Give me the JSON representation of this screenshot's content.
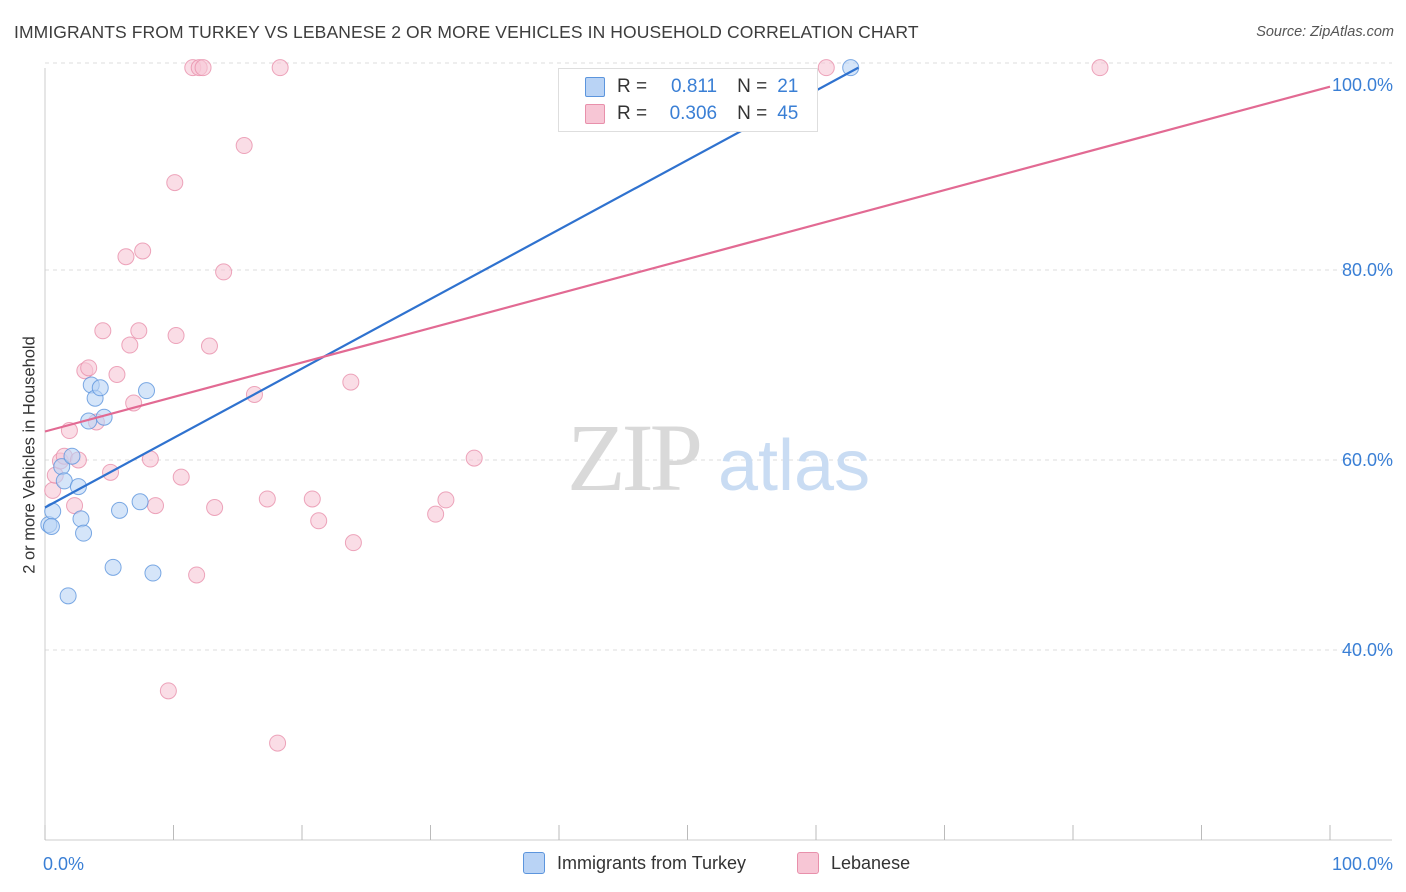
{
  "title": "IMMIGRANTS FROM TURKEY VS LEBANESE 2 OR MORE VEHICLES IN HOUSEHOLD CORRELATION CHART",
  "source": "Source: ZipAtlas.com",
  "watermark": {
    "zip": "ZIP",
    "atlas": "atlas"
  },
  "colors": {
    "blue_fill": "#b9d3f5",
    "blue_stroke": "#5c95dd",
    "blue_line": "#2f72cf",
    "pink_fill": "#f7c6d5",
    "pink_stroke": "#e890ab",
    "pink_line": "#e26a93",
    "axis_text": "#3a7fd5",
    "grid": "#dddddd"
  },
  "legend": {
    "r_label": "R =",
    "n_label": "N =",
    "turkey": {
      "r": "0.811",
      "n": "21"
    },
    "lebanese": {
      "r": "0.306",
      "n": "45"
    }
  },
  "bottom_legend": {
    "turkey": "Immigrants from Turkey",
    "lebanese": "Lebanese"
  },
  "chart_data": {
    "type": "scatter",
    "title": "IMMIGRANTS FROM TURKEY VS LEBANESE 2 OR MORE VEHICLES IN HOUSEHOLD CORRELATION CHART",
    "xlabel": "",
    "ylabel": "2 or more Vehicles in Household",
    "xlim": [
      0,
      100
    ],
    "ylim": [
      20,
      102
    ],
    "x_tick_labels": [
      {
        "value": 0,
        "label": "0.0%"
      },
      {
        "value": 100,
        "label": "100.0%"
      }
    ],
    "y_tick_labels": [
      {
        "value": 100,
        "label": "100.0%"
      },
      {
        "value": 80,
        "label": "80.0%"
      },
      {
        "value": 60,
        "label": "60.0%"
      },
      {
        "value": 40,
        "label": "40.0%"
      }
    ],
    "series": [
      {
        "name": "Immigrants from Turkey",
        "color": "#b9d3f5",
        "R": 0.811,
        "N": 21,
        "trend": {
          "x": [
            0,
            63.3
          ],
          "y": [
            55,
            101.3
          ]
        },
        "points": [
          {
            "x": 0.3,
            "y": 53.2
          },
          {
            "x": 0.6,
            "y": 54.6
          },
          {
            "x": 0.5,
            "y": 53.0
          },
          {
            "x": 1.3,
            "y": 59.3
          },
          {
            "x": 1.5,
            "y": 57.8
          },
          {
            "x": 1.8,
            "y": 45.7
          },
          {
            "x": 2.1,
            "y": 60.4
          },
          {
            "x": 2.6,
            "y": 57.2
          },
          {
            "x": 2.8,
            "y": 53.8
          },
          {
            "x": 3.0,
            "y": 52.3
          },
          {
            "x": 3.4,
            "y": 64.1
          },
          {
            "x": 3.6,
            "y": 67.9
          },
          {
            "x": 3.9,
            "y": 66.5
          },
          {
            "x": 4.3,
            "y": 67.6
          },
          {
            "x": 4.6,
            "y": 64.5
          },
          {
            "x": 5.3,
            "y": 48.7
          },
          {
            "x": 5.8,
            "y": 54.7
          },
          {
            "x": 7.4,
            "y": 55.6
          },
          {
            "x": 7.9,
            "y": 67.3
          },
          {
            "x": 8.4,
            "y": 48.1
          },
          {
            "x": 62.7,
            "y": 101.3
          }
        ]
      },
      {
        "name": "Lebanese",
        "color": "#f7c6d5",
        "R": 0.306,
        "N": 45,
        "trend": {
          "x": [
            0,
            100
          ],
          "y": [
            63,
            99.3
          ]
        },
        "points": [
          {
            "x": 0.6,
            "y": 56.8
          },
          {
            "x": 0.8,
            "y": 58.4
          },
          {
            "x": 1.2,
            "y": 59.9
          },
          {
            "x": 1.5,
            "y": 60.4
          },
          {
            "x": 1.9,
            "y": 63.1
          },
          {
            "x": 2.3,
            "y": 55.2
          },
          {
            "x": 2.6,
            "y": 60.0
          },
          {
            "x": 3.1,
            "y": 69.4
          },
          {
            "x": 3.4,
            "y": 69.7
          },
          {
            "x": 4.0,
            "y": 64.0
          },
          {
            "x": 4.5,
            "y": 73.6
          },
          {
            "x": 5.1,
            "y": 58.7
          },
          {
            "x": 5.6,
            "y": 69.0
          },
          {
            "x": 6.3,
            "y": 81.4
          },
          {
            "x": 6.6,
            "y": 72.1
          },
          {
            "x": 6.9,
            "y": 66.0
          },
          {
            "x": 7.3,
            "y": 73.6
          },
          {
            "x": 7.6,
            "y": 82.0
          },
          {
            "x": 8.2,
            "y": 60.1
          },
          {
            "x": 8.6,
            "y": 55.2
          },
          {
            "x": 9.6,
            "y": 35.7
          },
          {
            "x": 10.1,
            "y": 89.2
          },
          {
            "x": 10.2,
            "y": 73.1
          },
          {
            "x": 10.6,
            "y": 58.2
          },
          {
            "x": 11.5,
            "y": 101.3
          },
          {
            "x": 11.8,
            "y": 47.9
          },
          {
            "x": 12.0,
            "y": 101.3
          },
          {
            "x": 12.3,
            "y": 101.3
          },
          {
            "x": 12.8,
            "y": 72.0
          },
          {
            "x": 13.2,
            "y": 55.0
          },
          {
            "x": 13.9,
            "y": 79.8
          },
          {
            "x": 15.5,
            "y": 93.1
          },
          {
            "x": 17.3,
            "y": 55.9
          },
          {
            "x": 18.1,
            "y": 30.2
          },
          {
            "x": 18.3,
            "y": 101.3
          },
          {
            "x": 20.8,
            "y": 55.9
          },
          {
            "x": 21.3,
            "y": 53.6
          },
          {
            "x": 23.8,
            "y": 68.2
          },
          {
            "x": 24.0,
            "y": 51.3
          },
          {
            "x": 30.4,
            "y": 54.3
          },
          {
            "x": 31.2,
            "y": 55.8
          },
          {
            "x": 33.4,
            "y": 60.2
          },
          {
            "x": 60.8,
            "y": 101.3
          },
          {
            "x": 82.1,
            "y": 101.3
          },
          {
            "x": 16.3,
            "y": 66.9
          }
        ]
      }
    ],
    "grid": true,
    "legend_position": "top-center"
  }
}
